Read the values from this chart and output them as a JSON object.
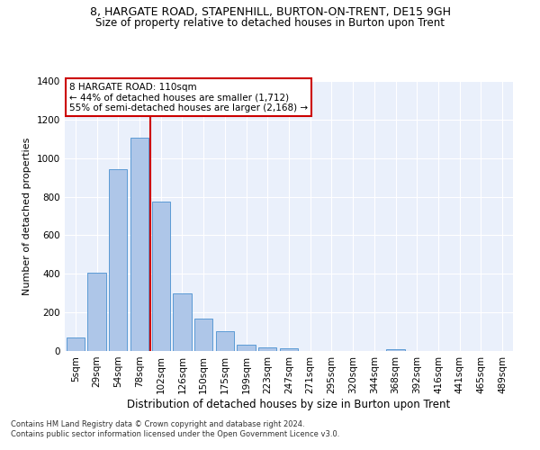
{
  "title1": "8, HARGATE ROAD, STAPENHILL, BURTON-ON-TRENT, DE15 9GH",
  "title2": "Size of property relative to detached houses in Burton upon Trent",
  "xlabel": "Distribution of detached houses by size in Burton upon Trent",
  "ylabel": "Number of detached properties",
  "categories": [
    "5sqm",
    "29sqm",
    "54sqm",
    "78sqm",
    "102sqm",
    "126sqm",
    "150sqm",
    "175sqm",
    "199sqm",
    "223sqm",
    "247sqm",
    "271sqm",
    "295sqm",
    "320sqm",
    "344sqm",
    "368sqm",
    "392sqm",
    "416sqm",
    "441sqm",
    "465sqm",
    "489sqm"
  ],
  "values": [
    70,
    405,
    945,
    1105,
    775,
    300,
    170,
    105,
    35,
    20,
    15,
    0,
    0,
    0,
    0,
    10,
    0,
    0,
    0,
    0,
    0
  ],
  "bar_color": "#aec6e8",
  "bar_edge_color": "#5b9bd5",
  "vline_x_index": 4,
  "vline_color": "#cc0000",
  "annotation_text": "8 HARGATE ROAD: 110sqm\n← 44% of detached houses are smaller (1,712)\n55% of semi-detached houses are larger (2,168) →",
  "annotation_box_color": "#ffffff",
  "annotation_box_edge": "#cc0000",
  "ylim": [
    0,
    1400
  ],
  "yticks": [
    0,
    200,
    400,
    600,
    800,
    1000,
    1200,
    1400
  ],
  "footnote1": "Contains HM Land Registry data © Crown copyright and database right 2024.",
  "footnote2": "Contains public sector information licensed under the Open Government Licence v3.0.",
  "bg_color": "#eaf0fb",
  "title1_fontsize": 9,
  "title2_fontsize": 8.5,
  "xlabel_fontsize": 8.5,
  "ylabel_fontsize": 8,
  "tick_fontsize": 7.5,
  "annot_fontsize": 7.5
}
